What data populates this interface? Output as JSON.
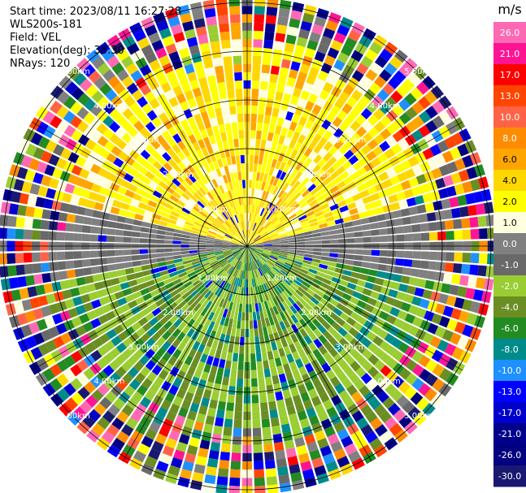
{
  "header": {
    "start_time": "Start time: 2023/08/11 16:27:28",
    "instrument": "WLS200s-181",
    "field": "Field: VEL",
    "elevation": "Elevation(deg): 35.30",
    "nrays": "NRays: 120"
  },
  "chart_data": {
    "type": "heatmap",
    "projection": "polar-ppi",
    "field": "VEL",
    "unit": "m/s",
    "range_rings_km": [
      1.0,
      2.0,
      3.0,
      4.0,
      5.0
    ],
    "range_ring_labels": [
      "1.00km",
      "2.00km",
      "3.00km",
      "4.00km",
      "5.00km"
    ],
    "spokes_deg": [
      0,
      30,
      60,
      90,
      120,
      150,
      180,
      210,
      240,
      270,
      300,
      330
    ],
    "nrays": 120,
    "colorbar": {
      "label": "m/s",
      "ticks": [
        "26.0",
        "21.0",
        "17.0",
        "13.0",
        "10.0",
        "8.0",
        "6.0",
        "4.0",
        "2.0",
        "1.0",
        "0.0",
        "-1.0",
        "-2.0",
        "-4.0",
        "-6.0",
        "-8.0",
        "-10.0",
        "-13.0",
        "-17.0",
        "-21.0",
        "-26.0",
        "-30.0"
      ],
      "colors": [
        "#ff69b4",
        "#ff1493",
        "#ff0000",
        "#ff4500",
        "#ff6347",
        "#ff8c00",
        "#ffa500",
        "#ffd700",
        "#ffff00",
        "#ffffe0",
        "#808080",
        "#696969",
        "#9acd32",
        "#6b8e23",
        "#228b22",
        "#008b8b",
        "#1e90ff",
        "#0000ff",
        "#0000cd",
        "#00008b",
        "#000080",
        "#191970"
      ]
    },
    "velocity_pattern": "positive (2 to 6 m/s) north of radar, negative (-2 to -6 m/s) south, near-zero east-west band, noisy beyond ~4 km"
  }
}
